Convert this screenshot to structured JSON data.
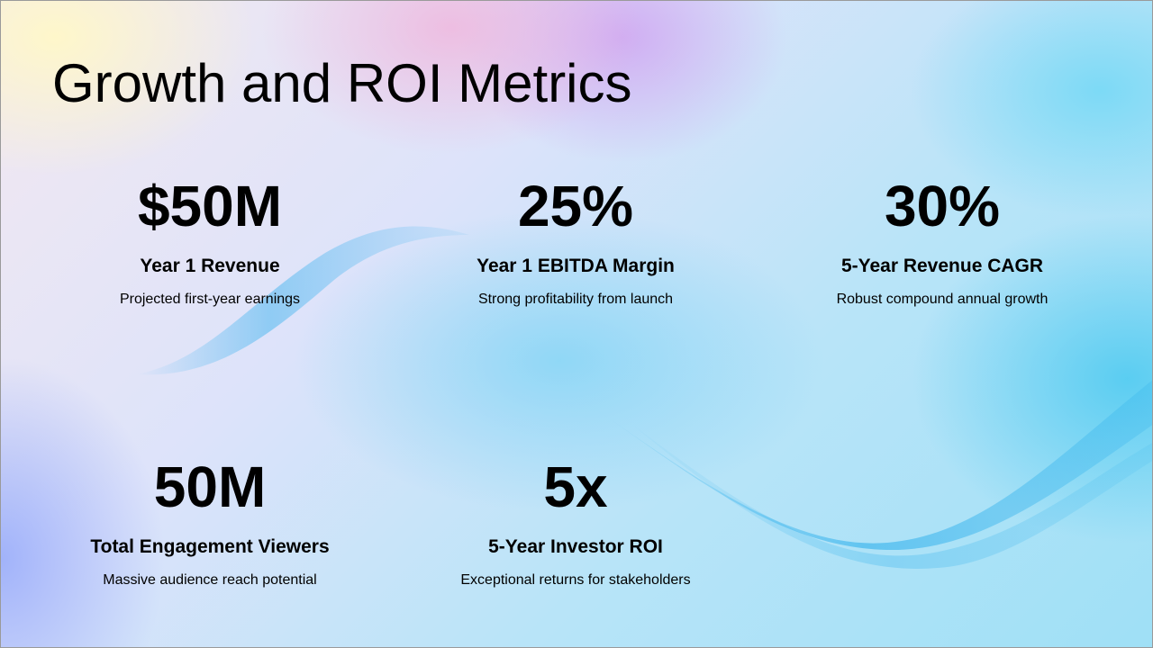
{
  "slide": {
    "title": "Growth and ROI Metrics",
    "metrics": [
      {
        "value": "$50M",
        "label": "Year 1 Revenue",
        "description": "Projected first-year earnings"
      },
      {
        "value": "25%",
        "label": "Year 1 EBITDA Margin",
        "description": "Strong profitability from launch"
      },
      {
        "value": "30%",
        "label": "5-Year Revenue CAGR",
        "description": "Robust compound annual growth"
      },
      {
        "value": "50M",
        "label": "Total Engagement Viewers",
        "description": "Massive audience reach potential"
      },
      {
        "value": "5x",
        "label": "5-Year Investor ROI",
        "description": "Exceptional returns for stakeholders"
      }
    ]
  }
}
